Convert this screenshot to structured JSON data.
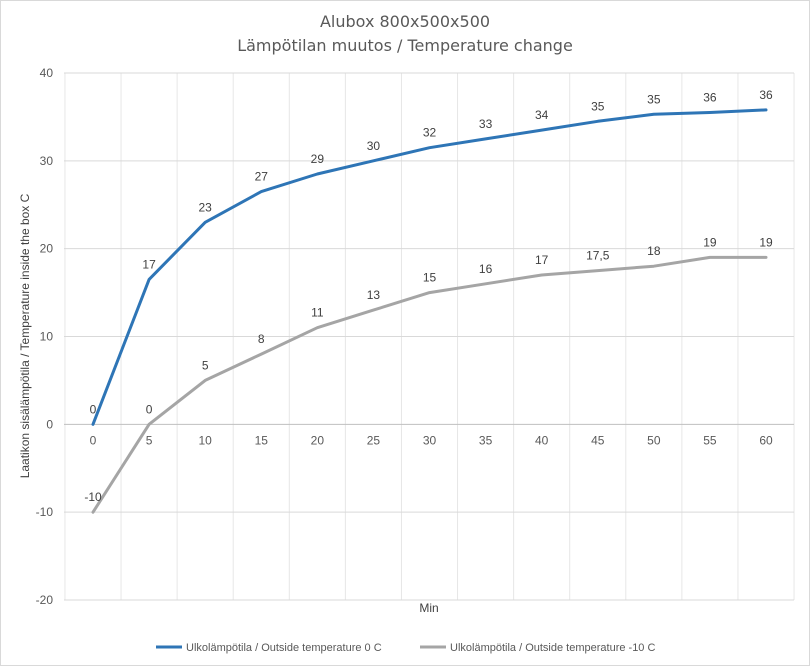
{
  "chart_data": {
    "type": "line",
    "title": "Alubox 800x500x500",
    "subtitle": "Lämpötilan muutos / Temperature change",
    "xlabel": "Min",
    "ylabel": "Laatikon sisälämpötila /  Temperature inside the box  C",
    "ylim": [
      -20,
      40
    ],
    "ytick_step": 10,
    "yticks": [
      "-20",
      "-10",
      "0",
      "10",
      "20",
      "30",
      "40"
    ],
    "x": [
      0,
      5,
      10,
      15,
      20,
      25,
      30,
      35,
      40,
      45,
      50,
      55,
      60
    ],
    "xtick_labels": [
      "0",
      "5",
      "10",
      "15",
      "20",
      "25",
      "30",
      "35",
      "40",
      "45",
      "50",
      "55",
      "60"
    ],
    "grid": true,
    "legend_position": "bottom",
    "series": [
      {
        "name": "Ulkolämpötila / Outside temperature 0 C",
        "color": "#2E75B6",
        "values": [
          0,
          16.5,
          23,
          26.5,
          28.5,
          30,
          31.5,
          32.5,
          33.5,
          34.5,
          35.3,
          35.5,
          35.8
        ],
        "labels": [
          "0",
          "17",
          "23",
          "27",
          "29",
          "30",
          "32",
          "33",
          "34",
          "35",
          "35",
          "36",
          "36"
        ]
      },
      {
        "name": "Ulkolämpötila / Outside temperature -10 C",
        "color": "#A5A5A5",
        "values": [
          -10,
          0,
          5,
          8,
          11,
          13,
          15,
          16,
          17,
          17.5,
          18,
          19,
          19
        ],
        "labels": [
          "-10",
          "0",
          "5",
          "8",
          "11",
          "13",
          "15",
          "16",
          "17",
          "17,5",
          "18",
          "19",
          "19"
        ]
      }
    ]
  }
}
